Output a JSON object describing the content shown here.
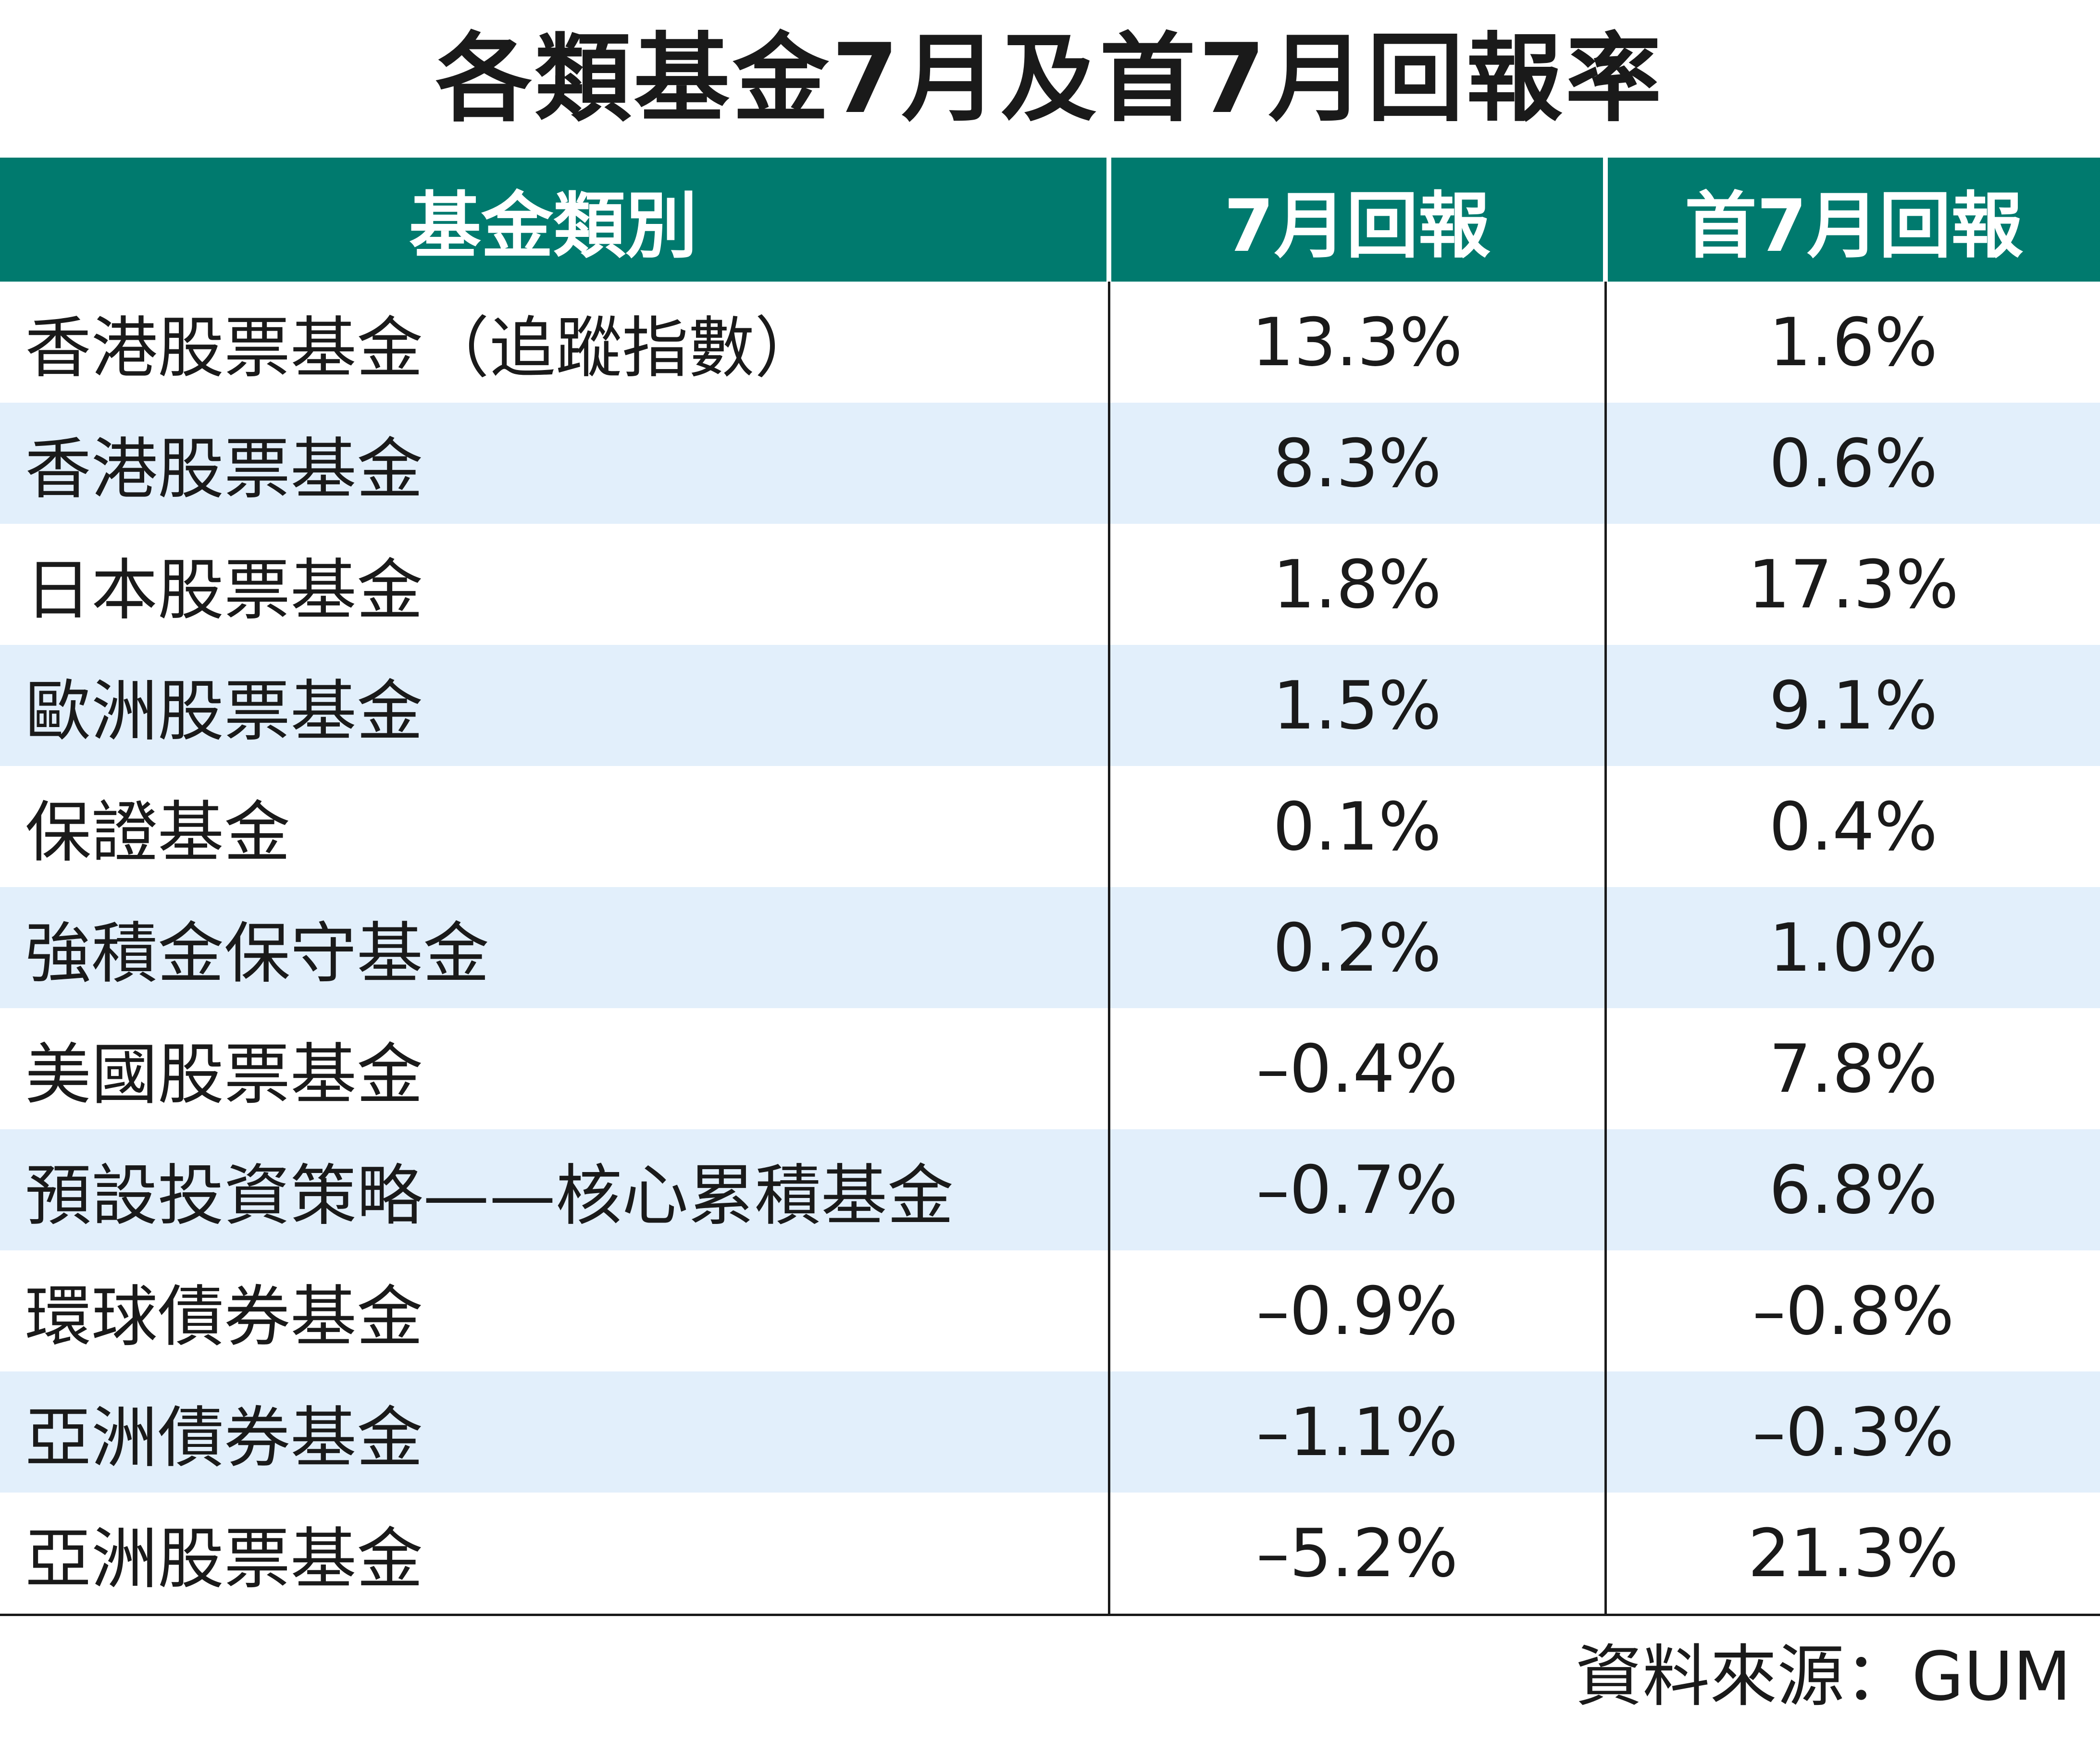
{
  "title": "各類基金7月及首7月回報率",
  "colors": {
    "header_bg": "#007a6e",
    "header_text": "#ffffff",
    "row_stripe": "#e2effb",
    "row_plain": "#ffffff"
  },
  "chart_data": {
    "type": "table",
    "title": "各類基金7月及首7月回報率",
    "columns": [
      "基金類別",
      "7月回報",
      "首7月回報"
    ],
    "rows": [
      {
        "name": "香港股票基金（追蹤指數）",
        "july": "13.3%",
        "ytd": "1.6%"
      },
      {
        "name": "香港股票基金",
        "july": "8.3%",
        "ytd": "0.6%"
      },
      {
        "name": "日本股票基金",
        "july": "1.8%",
        "ytd": "17.3%"
      },
      {
        "name": "歐洲股票基金",
        "july": "1.5%",
        "ytd": "9.1%"
      },
      {
        "name": "保證基金",
        "july": "0.1%",
        "ytd": "0.4%"
      },
      {
        "name": "強積金保守基金",
        "july": "0.2%",
        "ytd": "1.0%"
      },
      {
        "name": "美國股票基金",
        "july": "–0.4%",
        "ytd": "7.8%"
      },
      {
        "name": "預設投資策略——核心累積基金",
        "july": "–0.7%",
        "ytd": "6.8%"
      },
      {
        "name": "環球債券基金",
        "july": "–0.9%",
        "ytd": "–0.8%"
      },
      {
        "name": "亞洲債券基金",
        "july": "–1.1%",
        "ytd": "–0.3%"
      },
      {
        "name": "亞洲股票基金",
        "july": "–5.2%",
        "ytd": "21.3%"
      }
    ],
    "source": "資料來源：GUM"
  }
}
